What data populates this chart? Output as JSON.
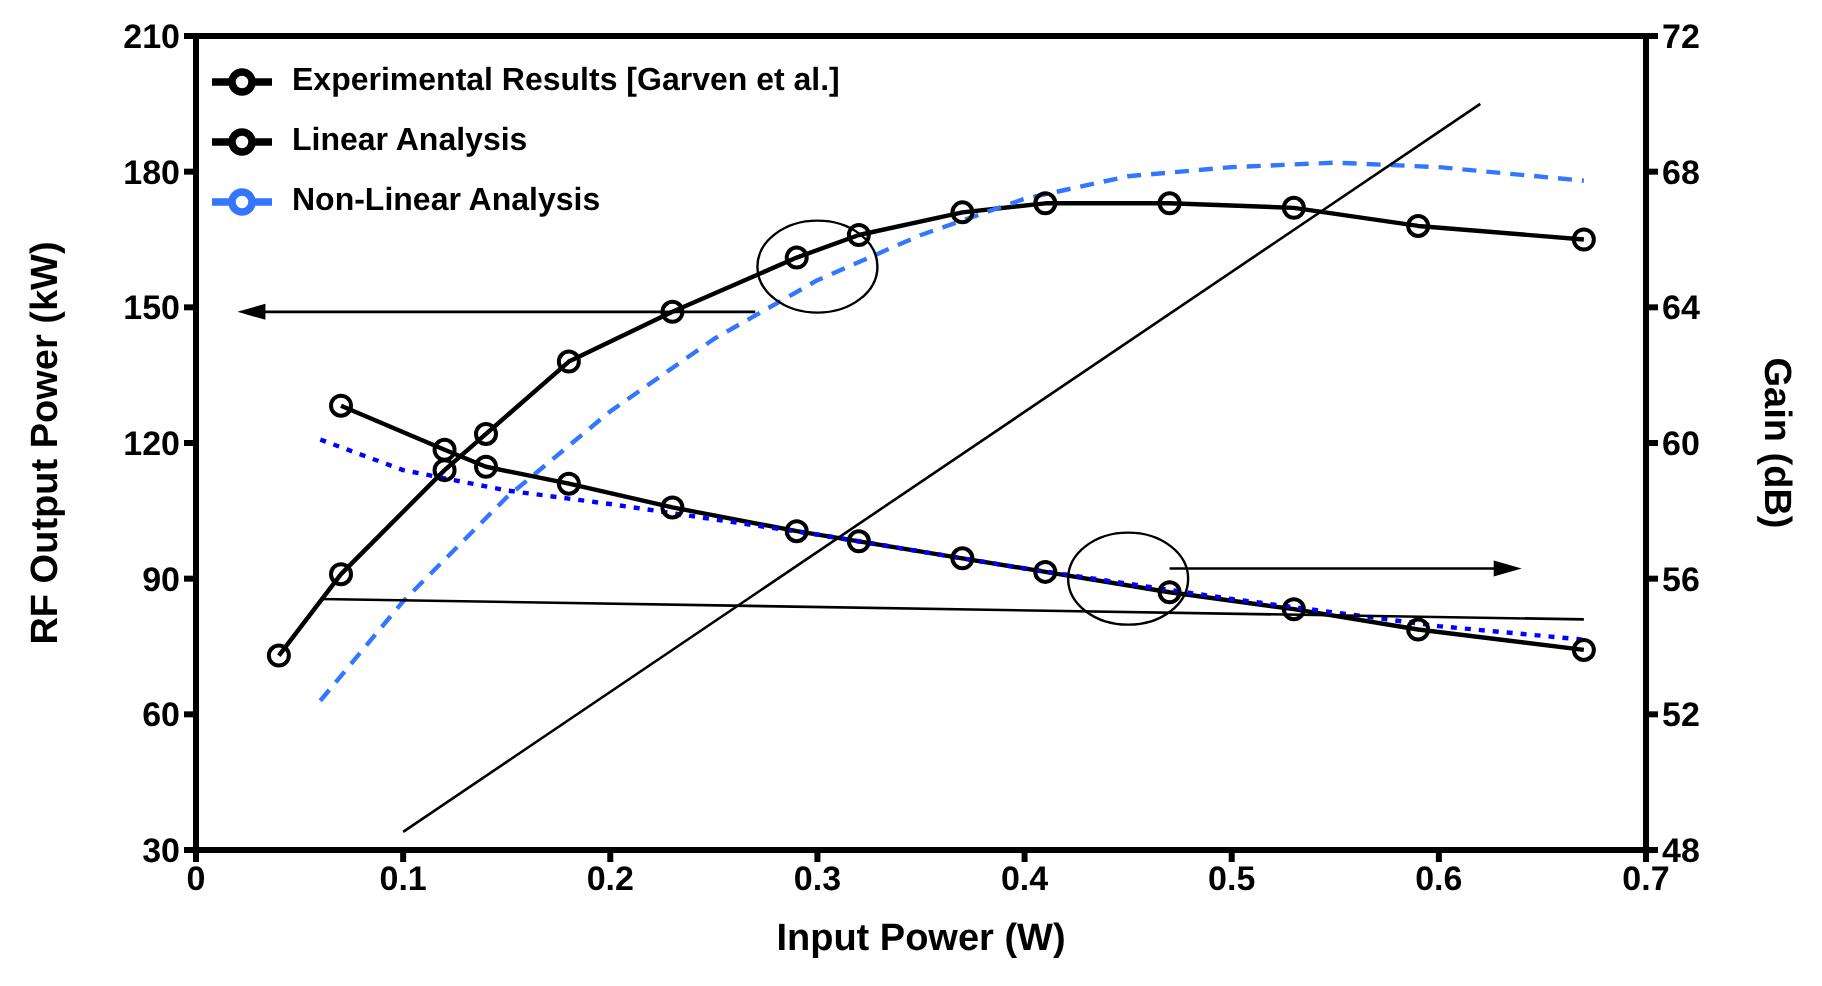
{
  "chart_data": {
    "type": "line",
    "xlabel": "Input Power (W)",
    "ylabel": "RF Output Power (kW)",
    "y2label": "Gain (dB)",
    "xlim": [
      0,
      0.7
    ],
    "xticks": [
      0,
      0.1,
      0.2,
      0.3,
      0.4,
      0.5,
      0.6,
      0.7
    ],
    "ylim": [
      30,
      210
    ],
    "yticks": [
      30,
      60,
      90,
      120,
      150,
      180,
      210
    ],
    "y2lim": [
      48,
      72
    ],
    "y2ticks": [
      48,
      52,
      56,
      60,
      64,
      68,
      72
    ],
    "legend": "top left",
    "grid": false,
    "series": [
      {
        "name": "Experimental Results [Garven et al.]",
        "color": "#000000",
        "marker": "circle",
        "line_style": "solid",
        "x": [
          0.04,
          0.07,
          0.12,
          0.14,
          0.18,
          0.23,
          0.29,
          0.32,
          0.37,
          0.41,
          0.47,
          0.53,
          0.59,
          0.67
        ],
        "values": [
          73,
          91,
          114,
          122,
          138,
          149,
          161,
          166,
          171,
          173,
          173,
          172,
          168,
          165
        ]
      },
      {
        "name": "Non-Linear Analysis",
        "color": "#3377ff",
        "marker": "none",
        "line_style": "dashed",
        "x": [
          0.06,
          0.1,
          0.15,
          0.2,
          0.25,
          0.3,
          0.35,
          0.4,
          0.45,
          0.5,
          0.55,
          0.6,
          0.67
        ],
        "values": [
          63,
          85,
          108,
          127,
          143,
          156,
          166,
          174,
          179,
          181,
          182,
          181,
          178
        ]
      },
      {
        "name": "Linear Analysis",
        "color": "#000000",
        "marker": "none",
        "line_style": "solid",
        "x": [
          0.1,
          0.62
        ],
        "values": [
          34,
          195
        ]
      },
      {
        "axis": "y2",
        "color": "#000000",
        "marker": "circle",
        "line_style": "solid",
        "x": [
          0.07,
          0.12,
          0.14,
          0.18,
          0.23,
          0.29,
          0.32,
          0.37,
          0.41,
          0.47,
          0.53,
          0.59,
          0.67
        ],
        "values": [
          61.1,
          59.8,
          59.3,
          58.8,
          58.1,
          57.4,
          57.1,
          56.6,
          56.2,
          55.6,
          55.1,
          54.5,
          53.9
        ]
      },
      {
        "axis": "y2",
        "color": "#0000ff",
        "marker": "none",
        "line_style": "dotted",
        "x": [
          0.06,
          0.1,
          0.15,
          0.2,
          0.3,
          0.4,
          0.5,
          0.6,
          0.67
        ],
        "values": [
          60.1,
          59.2,
          58.6,
          58.2,
          57.3,
          56.3,
          55.4,
          54.6,
          54.2
        ]
      },
      {
        "axis": "y2",
        "color": "#000000",
        "marker": "none",
        "line_style": "solid",
        "x": [
          0.06,
          0.67
        ],
        "values": [
          55.4,
          54.8
        ]
      }
    ]
  }
}
